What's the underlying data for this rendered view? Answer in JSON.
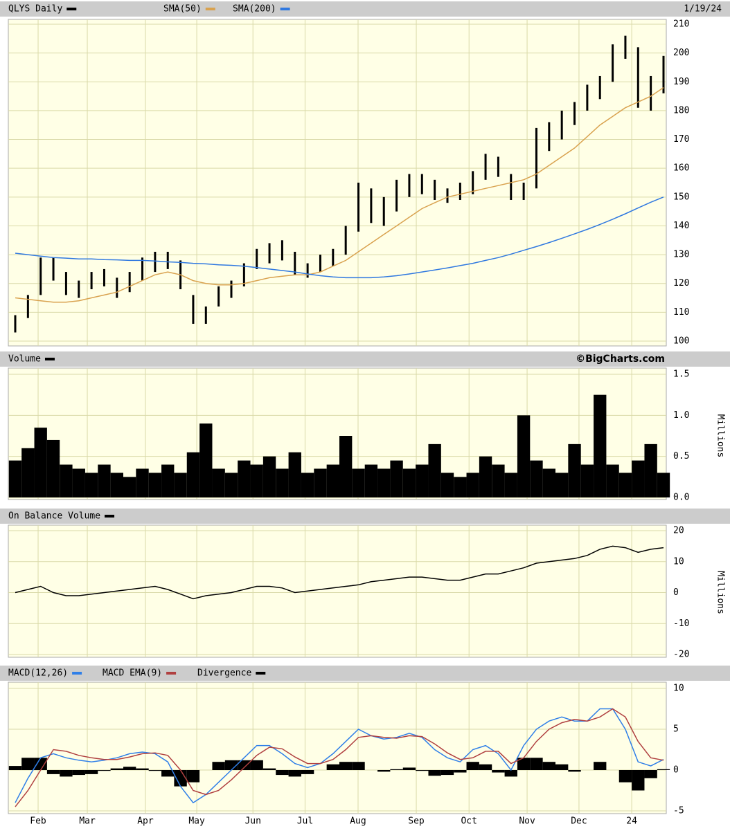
{
  "chart_data": [
    {
      "type": "stock",
      "date": "1/19/24",
      "ylim": [
        100,
        210
      ],
      "yticks": [
        100,
        110,
        120,
        130,
        140,
        150,
        160,
        170,
        180,
        190,
        200,
        210
      ],
      "grid": true,
      "series": [
        {
          "name": "QLYS Daily",
          "color": "#000000",
          "style": "range",
          "low": [
            103,
            108,
            116,
            121,
            116,
            115,
            118,
            119,
            115,
            117,
            121,
            124,
            125,
            118,
            106,
            106,
            112,
            115,
            119,
            125,
            127,
            128,
            123,
            122,
            124,
            126,
            130,
            138,
            141,
            140,
            145,
            150,
            151,
            149,
            148,
            149,
            151,
            156,
            157,
            149,
            149,
            153,
            166,
            170,
            175,
            180,
            184,
            190,
            198,
            181,
            180,
            186
          ],
          "high": [
            109,
            116,
            129,
            129,
            124,
            121,
            124,
            125,
            122,
            124,
            129,
            131,
            131,
            128,
            116,
            112,
            119,
            121,
            127,
            132,
            134,
            135,
            131,
            127,
            130,
            132,
            140,
            155,
            153,
            150,
            156,
            158,
            158,
            156,
            153,
            155,
            159,
            165,
            164,
            158,
            155,
            174,
            176,
            180,
            183,
            189,
            192,
            203,
            206,
            202,
            192,
            199
          ]
        },
        {
          "name": "SMA(50)",
          "color": "#d9a24f",
          "style": "line",
          "values": [
            115,
            114.5,
            114,
            113.5,
            113.5,
            114,
            115,
            116,
            117,
            119,
            121,
            123,
            124,
            123,
            121,
            120,
            119.5,
            119.5,
            120,
            121,
            122,
            122.5,
            123,
            123,
            124,
            126,
            128,
            131,
            134,
            137,
            140,
            143,
            146,
            148,
            150,
            151,
            152,
            153,
            154,
            155,
            156,
            158,
            161,
            164,
            167,
            171,
            175,
            178,
            181,
            183,
            185,
            188
          ]
        },
        {
          "name": "SMA(200)",
          "color": "#2f78e0",
          "style": "line",
          "values": [
            130.5,
            130,
            129.5,
            129,
            128.8,
            128.5,
            128.5,
            128.3,
            128.2,
            128,
            128,
            127.8,
            127.5,
            127.3,
            127,
            126.8,
            126.5,
            126.3,
            126,
            125.5,
            125,
            124.5,
            124,
            123.3,
            122.7,
            122.3,
            122,
            122,
            122,
            122.3,
            122.7,
            123.3,
            124,
            124.7,
            125.4,
            126.2,
            127,
            128,
            129,
            130.2,
            131.5,
            132.8,
            134.2,
            135.7,
            137.2,
            138.8,
            140.5,
            142.3,
            144.2,
            146.2,
            148.2,
            150
          ]
        }
      ]
    },
    {
      "type": "bar",
      "source": "©BigCharts.com",
      "ylabel": "Millions",
      "ylim": [
        0,
        1.5
      ],
      "grid": true,
      "yticks": [
        {
          "value": 0,
          "label": "0.0"
        },
        0.5,
        {
          "value": 1,
          "label": "1.0"
        },
        1.5
      ],
      "series": [
        {
          "name": "Volume",
          "color": "#000000",
          "style": "bar",
          "values": [
            0.45,
            0.6,
            0.85,
            0.7,
            0.4,
            0.35,
            0.3,
            0.4,
            0.3,
            0.25,
            0.35,
            0.3,
            0.4,
            0.3,
            0.55,
            0.9,
            0.35,
            0.3,
            0.45,
            0.4,
            0.5,
            0.35,
            0.55,
            0.3,
            0.35,
            0.4,
            0.75,
            0.35,
            0.4,
            0.35,
            0.45,
            0.35,
            0.4,
            0.65,
            0.3,
            0.25,
            0.3,
            0.5,
            0.4,
            0.3,
            1.0,
            0.45,
            0.35,
            0.3,
            0.65,
            0.4,
            1.25,
            0.4,
            0.3,
            0.45,
            0.65,
            0.3
          ]
        }
      ]
    },
    {
      "type": "line",
      "ylabel": "Millions",
      "ylim": [
        -20,
        20
      ],
      "yticks": [
        -20,
        -10,
        0,
        10,
        20
      ],
      "grid": true,
      "series": [
        {
          "name": "On Balance Volume",
          "color": "#000000",
          "style": "line",
          "values": [
            0,
            1,
            2,
            0,
            -1,
            -1,
            -0.5,
            0,
            0.5,
            1,
            1.5,
            2,
            1,
            -0.5,
            -2,
            -1,
            -0.5,
            0,
            1,
            2,
            2,
            1.5,
            0,
            0.5,
            1,
            1.5,
            2,
            2.5,
            3.5,
            4,
            4.5,
            5,
            5,
            4.5,
            4,
            4,
            5,
            6,
            6,
            7,
            8,
            9.5,
            10,
            10.5,
            11,
            12,
            14,
            15,
            14.5,
            13,
            14,
            14.5
          ]
        }
      ]
    },
    {
      "type": "macd",
      "ylim": [
        -5,
        10
      ],
      "yticks": [
        -5,
        0,
        5,
        10
      ],
      "grid": true,
      "xlim": [
        0,
        51
      ],
      "xticks": [
        {
          "value": 1.8,
          "label": "Feb"
        },
        {
          "value": 5.67,
          "label": "Mar"
        },
        {
          "value": 10.24,
          "label": "Apr"
        },
        {
          "value": 14.28,
          "label": "May"
        },
        {
          "value": 18.7,
          "label": "Jun"
        },
        {
          "value": 22.8,
          "label": "Jul"
        },
        {
          "value": 26.97,
          "label": "Aug"
        },
        {
          "value": 31.55,
          "label": "Sep"
        },
        {
          "value": 35.7,
          "label": "Oct"
        },
        {
          "value": 40.27,
          "label": "Nov"
        },
        {
          "value": 44.35,
          "label": "Dec"
        },
        {
          "value": 48.5,
          "label": "24"
        }
      ],
      "series": [
        {
          "name": "MACD(12,26)",
          "color": "#2f7fe8",
          "style": "line",
          "values": [
            -4,
            -1,
            1.5,
            2,
            1.5,
            1.2,
            1,
            1.2,
            1.5,
            2,
            2.2,
            2,
            1,
            -2,
            -4,
            -3,
            -1.5,
            0,
            1.5,
            3,
            3,
            2,
            0.8,
            0.3,
            0.8,
            2,
            3.5,
            5,
            4.2,
            3.8,
            4,
            4.5,
            4,
            2.5,
            1.5,
            1,
            2.5,
            3,
            2,
            0,
            3,
            5,
            6,
            6.5,
            6,
            6,
            7.5,
            7.5,
            5,
            1,
            0.5,
            1.3
          ]
        },
        {
          "name": "MACD EMA(9)",
          "color": "#b04040",
          "style": "line",
          "values": [
            -4.5,
            -2.5,
            0,
            2.5,
            2.3,
            1.8,
            1.5,
            1.3,
            1.3,
            1.6,
            2,
            2.1,
            1.8,
            0,
            -2.5,
            -3,
            -2.5,
            -1.2,
            0.3,
            1.8,
            2.8,
            2.6,
            1.6,
            0.8,
            0.8,
            1.3,
            2.5,
            4,
            4.2,
            4,
            3.9,
            4.2,
            4.1,
            3.2,
            2.1,
            1.3,
            1.5,
            2.3,
            2.3,
            0.8,
            1.5,
            3.5,
            5,
            5.8,
            6.2,
            6,
            6.5,
            7.5,
            6.5,
            3.5,
            1.5,
            1.2
          ]
        },
        {
          "name": "Divergence",
          "color": "#000000",
          "style": "bar",
          "values": [
            0.5,
            1.5,
            1.5,
            -0.5,
            -0.8,
            -0.6,
            -0.5,
            -0.1,
            0.2,
            0.4,
            0.2,
            -0.1,
            -0.8,
            -2,
            -1.5,
            0,
            1,
            1.2,
            1.2,
            1.2,
            0.2,
            -0.6,
            -0.8,
            -0.5,
            0,
            0.7,
            1,
            1,
            0,
            -0.2,
            0.1,
            0.3,
            -0.1,
            -0.7,
            -0.6,
            -0.3,
            1,
            0.7,
            -0.3,
            -0.8,
            1.5,
            1.5,
            1,
            0.7,
            -0.2,
            0,
            1,
            0,
            -1.5,
            -2.5,
            -1,
            0.1
          ]
        }
      ]
    }
  ]
}
